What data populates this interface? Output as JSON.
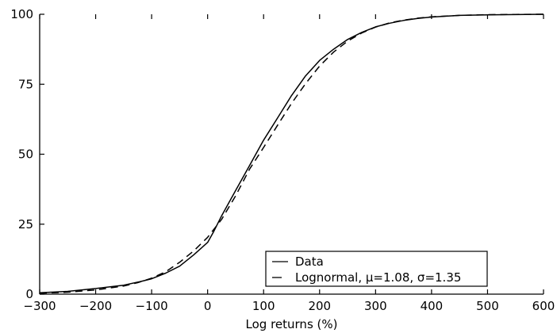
{
  "chart_data": {
    "type": "line",
    "xlabel": "Log returns (%)",
    "ylabel": "",
    "xlim": [
      -300,
      600
    ],
    "ylim": [
      0,
      100
    ],
    "xticks": [
      -300,
      -200,
      -100,
      0,
      100,
      200,
      300,
      400,
      500,
      600
    ],
    "yticks": [
      0,
      25,
      50,
      75,
      100
    ],
    "xtick_labels": [
      "−300",
      "−200",
      "−100",
      "0",
      "100",
      "200",
      "300",
      "400",
      "500",
      "600"
    ],
    "ytick_labels": [
      "0",
      "25",
      "50",
      "75",
      "100"
    ],
    "grid": false,
    "legend_position": "bottom-right",
    "series": [
      {
        "name": "Data",
        "style": "solid",
        "color": "#000000",
        "x": [
          -300,
          -250,
          -200,
          -150,
          -120,
          -100,
          -75,
          -50,
          -25,
          0,
          10,
          25,
          50,
          75,
          100,
          125,
          150,
          175,
          200,
          225,
          250,
          275,
          300,
          325,
          350,
          375,
          400,
          450,
          500,
          550,
          600
        ],
        "y": [
          0.5,
          1.0,
          2.0,
          3.2,
          4.5,
          5.5,
          7.5,
          10,
          14,
          18.5,
          22,
          28,
          37,
          46,
          55,
          63,
          71,
          78,
          83.5,
          87.5,
          91,
          93.5,
          95.5,
          96.8,
          97.8,
          98.5,
          99,
          99.6,
          99.8,
          99.9,
          100
        ]
      },
      {
        "name": "Lognormal, μ=1.08, σ=1.35",
        "style": "dashed",
        "color": "#000000",
        "x": [
          -300,
          -250,
          -200,
          -150,
          -125,
          -100,
          -75,
          -50,
          -25,
          0,
          25,
          50,
          75,
          100,
          125,
          150,
          175,
          200,
          225,
          250,
          275,
          300,
          325,
          350,
          375,
          400,
          450,
          500,
          550,
          600
        ],
        "y": [
          0.3,
          0.7,
          1.5,
          2.9,
          4.1,
          5.7,
          8.0,
          11.4,
          15.4,
          20.3,
          26.7,
          35.1,
          44.7,
          52.4,
          60.4,
          68.2,
          75.2,
          81.5,
          86.5,
          90.4,
          93.3,
          95.4,
          96.9,
          97.9,
          98.6,
          99.1,
          99.6,
          99.85,
          99.95,
          100
        ]
      }
    ]
  }
}
